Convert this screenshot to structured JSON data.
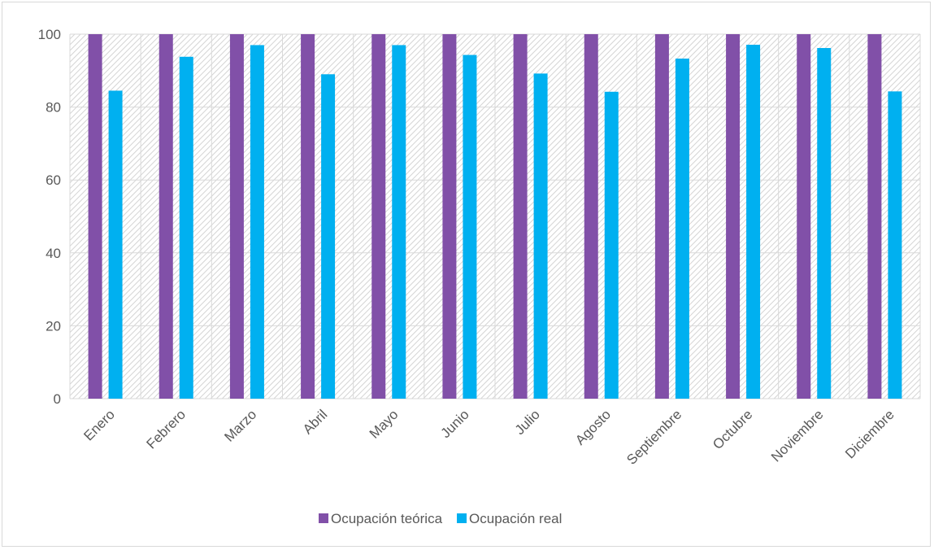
{
  "chart_data": {
    "type": "bar",
    "categories": [
      "Enero",
      "Febrero",
      "Marzo",
      "Abril",
      "Mayo",
      "Junio",
      "Julio",
      "Agosto",
      "Septiembre",
      "Octubre",
      "Noviembre",
      "Diciembre"
    ],
    "series": [
      {
        "name": "Ocupación teórica",
        "color": "#8150a8",
        "values": [
          100,
          100,
          100,
          100,
          100,
          100,
          100,
          100,
          100,
          100,
          100,
          100
        ]
      },
      {
        "name": "Ocupación real",
        "color": "#00b0f0",
        "values": [
          84.5,
          93.8,
          97.0,
          89.0,
          97.0,
          94.3,
          89.2,
          84.2,
          93.3,
          97.1,
          96.2,
          84.3
        ]
      }
    ],
    "title": "",
    "xlabel": "",
    "ylabel": "",
    "ylim": [
      0,
      100
    ],
    "yticks": [
      0,
      20,
      40,
      60,
      80,
      100
    ],
    "grid": true,
    "legend_position": "bottom"
  }
}
